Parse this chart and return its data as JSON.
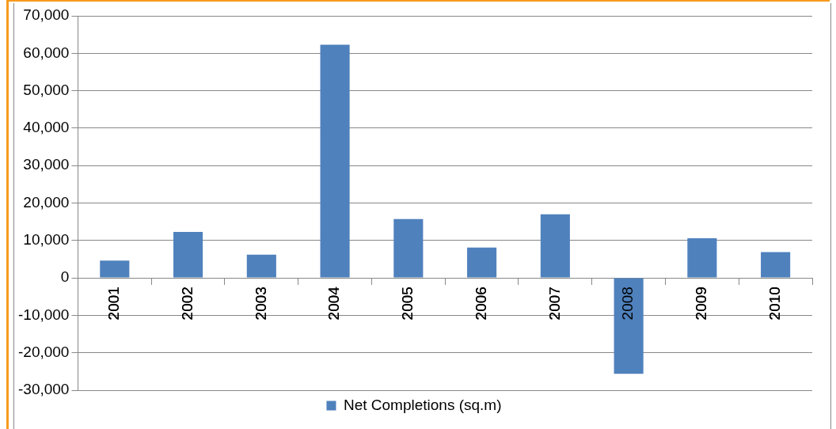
{
  "chart_data": {
    "type": "bar",
    "categories": [
      "2001",
      "2002",
      "2003",
      "2004",
      "2005",
      "2006",
      "2007",
      "2008",
      "2009",
      "2010"
    ],
    "series": [
      {
        "name": "Net Completions (sq.m)",
        "color": "#4f81bd",
        "values": [
          4600,
          12300,
          6200,
          62300,
          15700,
          8100,
          17000,
          -25600,
          10600,
          6900
        ]
      }
    ],
    "ylim": [
      -30000,
      70000
    ],
    "yticks": [
      {
        "value": -30000,
        "label": "-30,000"
      },
      {
        "value": -20000,
        "label": "-20,000"
      },
      {
        "value": -10000,
        "label": "-10,000"
      },
      0,
      {
        "value": 10000,
        "label": "10,000"
      },
      {
        "value": 20000,
        "label": "20,000"
      },
      {
        "value": 30000,
        "label": "30,000"
      },
      {
        "value": 40000,
        "label": "40,000"
      },
      {
        "value": 50000,
        "label": "50,000"
      },
      {
        "value": 60000,
        "label": "60,000"
      },
      {
        "value": 70000,
        "label": "70,000"
      }
    ],
    "grid": "y",
    "legend": "bottom"
  }
}
